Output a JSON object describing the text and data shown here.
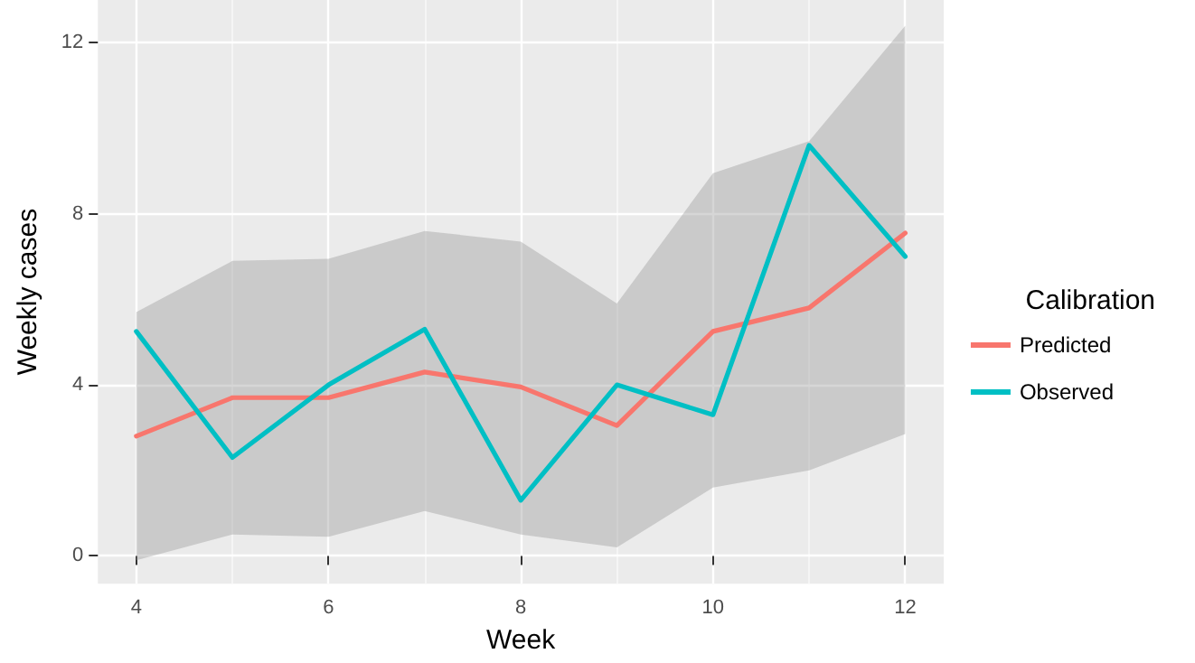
{
  "chart_data": {
    "type": "line",
    "xlabel": "Week",
    "ylabel": "Weekly cases",
    "legend_title": "Calibration",
    "x": [
      4,
      5,
      6,
      7,
      8,
      9,
      10,
      11,
      12
    ],
    "series": [
      {
        "name": "Predicted",
        "color": "#f8766d",
        "values": [
          2.8,
          3.7,
          3.7,
          4.3,
          3.95,
          3.05,
          5.25,
          5.8,
          7.55
        ],
        "lower": [
          -0.1,
          0.5,
          0.45,
          1.05,
          0.5,
          0.2,
          1.6,
          2.0,
          2.85
        ],
        "upper": [
          5.7,
          6.9,
          6.95,
          7.6,
          7.35,
          5.9,
          8.95,
          9.7,
          12.4
        ]
      },
      {
        "name": "Observed",
        "color": "#00bfc4",
        "values": [
          5.25,
          2.3,
          4.0,
          5.3,
          1.3,
          4.0,
          3.3,
          9.6,
          7.0
        ]
      }
    ],
    "xlim": [
      3.6,
      12.4
    ],
    "xticks": [
      4,
      6,
      8,
      10,
      12
    ],
    "ylim": [
      -0.65,
      13
    ],
    "yticks": [
      0,
      4,
      8,
      12
    ],
    "grid": true,
    "legend": "right",
    "marker": "none",
    "line_style": "solid"
  }
}
